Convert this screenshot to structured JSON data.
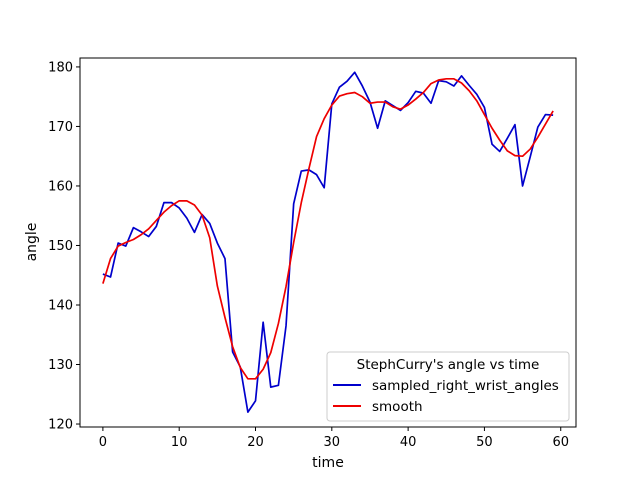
{
  "chart_data": {
    "type": "line",
    "xlabel": "time",
    "ylabel": "angle",
    "xlim": [
      -3,
      62
    ],
    "ylim": [
      119.5,
      181.5
    ],
    "xticks": [
      0,
      10,
      20,
      30,
      40,
      50,
      60
    ],
    "yticks": [
      120,
      130,
      140,
      150,
      160,
      170,
      180
    ],
    "grid": false,
    "legend": {
      "title": "StephCurry's angle vs time",
      "placement": "lower right"
    },
    "series": [
      {
        "name": "sampled_right_wrist_angles",
        "color": "#0000cc",
        "x": [
          0,
          1,
          2,
          3,
          4,
          5,
          6,
          7,
          8,
          9,
          10,
          11,
          12,
          13,
          14,
          15,
          16,
          17,
          18,
          19,
          20,
          21,
          22,
          23,
          24,
          25,
          26,
          27,
          28,
          29,
          30,
          31,
          32,
          33,
          34,
          35,
          36,
          37,
          38,
          39,
          40,
          41,
          42,
          43,
          44,
          45,
          46,
          47,
          48,
          49,
          50,
          51,
          52,
          53,
          54,
          55,
          56,
          57,
          58,
          59
        ],
        "y": [
          145.2,
          144.7,
          150.4,
          149.9,
          153.0,
          152.3,
          151.5,
          153.2,
          157.2,
          157.2,
          156.3,
          154.6,
          152.2,
          155.2,
          153.7,
          150.4,
          147.8,
          132.1,
          129.6,
          122.0,
          123.9,
          137.1,
          126.2,
          126.5,
          136.5,
          157.0,
          162.5,
          162.7,
          161.9,
          159.7,
          173.8,
          176.6,
          177.6,
          179.1,
          176.8,
          174.1,
          169.7,
          174.3,
          173.5,
          172.7,
          174.0,
          175.9,
          175.6,
          173.9,
          177.7,
          177.5,
          176.8,
          178.5,
          176.9,
          175.4,
          173.2,
          167.0,
          165.8,
          168.0,
          170.3,
          160.0,
          164.9,
          169.9,
          172.0,
          171.9
        ]
      },
      {
        "name": "smooth",
        "color": "#ee0000",
        "x": [
          0,
          1,
          2,
          3,
          4,
          5,
          6,
          7,
          8,
          9,
          10,
          11,
          12,
          13,
          14,
          15,
          16,
          17,
          18,
          19,
          20,
          21,
          22,
          23,
          24,
          25,
          26,
          27,
          28,
          29,
          30,
          31,
          32,
          33,
          34,
          35,
          36,
          37,
          38,
          39,
          40,
          41,
          42,
          43,
          44,
          45,
          46,
          47,
          48,
          49,
          50,
          51,
          52,
          53,
          54,
          55,
          56,
          57,
          58,
          59
        ],
        "y": [
          143.6,
          147.8,
          149.9,
          150.5,
          151.0,
          151.8,
          152.8,
          154.2,
          155.6,
          156.7,
          157.5,
          157.5,
          156.8,
          155.1,
          151.3,
          143.2,
          137.9,
          133.0,
          129.5,
          127.6,
          127.6,
          129.2,
          132.0,
          136.9,
          143.1,
          150.5,
          157.2,
          162.9,
          168.3,
          171.3,
          173.6,
          175.1,
          175.5,
          175.7,
          175.0,
          173.9,
          174.1,
          174.1,
          173.3,
          172.9,
          173.6,
          174.6,
          175.7,
          177.2,
          177.8,
          178.0,
          178.0,
          177.3,
          176.0,
          174.3,
          172.0,
          169.7,
          167.7,
          165.9,
          165.1,
          165.0,
          166.2,
          168.2,
          170.4,
          172.6
        ]
      }
    ]
  }
}
